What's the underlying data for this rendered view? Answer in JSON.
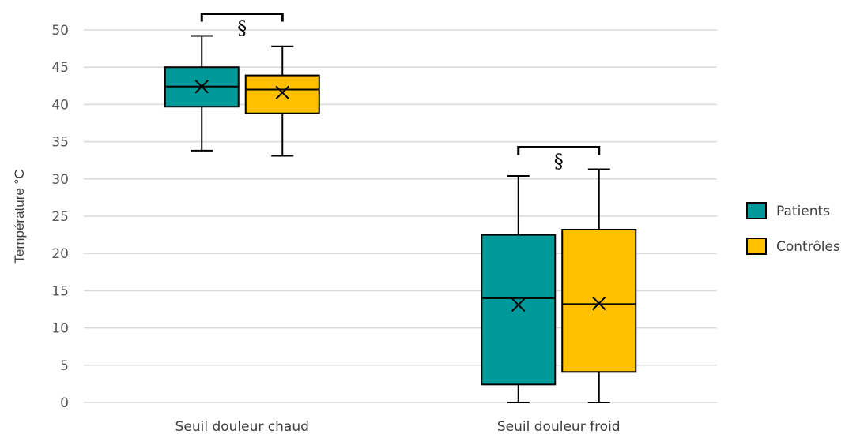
{
  "chart_data": {
    "type": "boxplot",
    "ylabel": "Température °C",
    "ylim": [
      0,
      50
    ],
    "yticks": [
      0,
      5,
      10,
      15,
      20,
      25,
      30,
      35,
      40,
      45,
      50
    ],
    "grid": true,
    "legend_position": "right",
    "categories": [
      "Seuil douleur chaud",
      "Seuil douleur froid"
    ],
    "series": [
      {
        "name": "Patients",
        "color": "#009999",
        "boxes": [
          {
            "min": 33.8,
            "q1": 39.7,
            "median": 42.4,
            "q3": 45.0,
            "max": 49.2,
            "mean": 42.4
          },
          {
            "min": 0.0,
            "q1": 2.4,
            "median": 14.0,
            "q3": 22.5,
            "max": 30.4,
            "mean": 13.1
          }
        ]
      },
      {
        "name": "Contrôles",
        "color": "#FFC000",
        "boxes": [
          {
            "min": 33.1,
            "q1": 38.8,
            "median": 42.0,
            "q3": 43.9,
            "max": 47.8,
            "mean": 41.6
          },
          {
            "min": 0.0,
            "q1": 4.1,
            "median": 13.2,
            "q3": 23.2,
            "max": 31.3,
            "mean": 13.3
          }
        ]
      }
    ],
    "annotations": [
      {
        "text": "§",
        "category_index": 0
      },
      {
        "text": "§",
        "category_index": 1
      }
    ]
  }
}
